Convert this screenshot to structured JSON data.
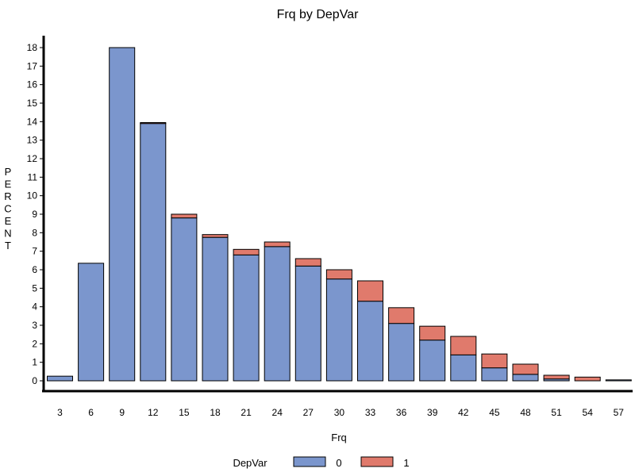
{
  "chart_data": {
    "type": "bar",
    "stacked": true,
    "title": "Frq by DepVar",
    "xlabel": "Frq",
    "ylabel": "PERCENT",
    "ylim": [
      0,
      18.5
    ],
    "yticks": [
      0,
      1,
      2,
      3,
      4,
      5,
      6,
      7,
      8,
      9,
      10,
      11,
      12,
      13,
      14,
      15,
      16,
      17,
      18
    ],
    "categories": [
      "3",
      "6",
      "9",
      "12",
      "15",
      "18",
      "21",
      "24",
      "27",
      "30",
      "33",
      "36",
      "39",
      "42",
      "45",
      "48",
      "51",
      "54",
      "57"
    ],
    "series": [
      {
        "name": "0",
        "color": "#7b96cd",
        "values": [
          0.25,
          6.35,
          18.0,
          13.9,
          8.8,
          7.75,
          6.8,
          7.25,
          6.2,
          5.5,
          4.3,
          3.1,
          2.2,
          1.4,
          0.7,
          0.35,
          0.1,
          0.0,
          0.05
        ]
      },
      {
        "name": "1",
        "color": "#e07a6c",
        "values": [
          0.0,
          0.0,
          0.0,
          0.05,
          0.2,
          0.15,
          0.3,
          0.25,
          0.4,
          0.5,
          1.1,
          0.85,
          0.75,
          1.0,
          0.75,
          0.55,
          0.2,
          0.2,
          0.0
        ]
      }
    ],
    "legend": {
      "title": "DepVar",
      "placement": "bottom"
    },
    "grid": false
  }
}
